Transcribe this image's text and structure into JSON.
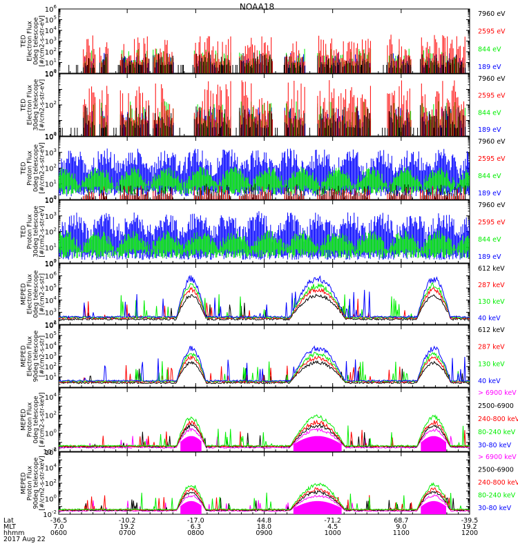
{
  "title": "NOAA18",
  "colors": {
    "black": "#000000",
    "red": "#ff0000",
    "green": "#00ee00",
    "blue": "#0000ff",
    "magenta": "#ff00ff",
    "axis": "#000000"
  },
  "chart_data": [
    {
      "type": "line",
      "ylabel": [
        "TED",
        "Electron Flux",
        "0deg telescope",
        "[#/cm2-s-str-eV]"
      ],
      "yscale": "log",
      "ylim": [
        1,
        1000000
      ],
      "ytick_exponents": [
        0,
        1,
        2,
        3,
        4,
        5,
        6
      ],
      "legend": [
        {
          "name": "7960 eV",
          "color": "#000000"
        },
        {
          "name": "2595 eV",
          "color": "#ff0000"
        },
        {
          "name": "844 eV",
          "color": "#00ee00"
        },
        {
          "name": "189 eV",
          "color": "#0000ff"
        }
      ],
      "style": "spiky"
    },
    {
      "type": "line",
      "ylabel": [
        "TED",
        "Electron Flux",
        "30deg telescope",
        "[#/cm2-s-str-eV]"
      ],
      "yscale": "log",
      "ylim": [
        1,
        10000
      ],
      "ytick_exponents": [
        0,
        2,
        4
      ],
      "legend": [
        {
          "name": "7960 eV",
          "color": "#000000"
        },
        {
          "name": "2595 eV",
          "color": "#ff0000"
        },
        {
          "name": "844 eV",
          "color": "#00ee00"
        },
        {
          "name": "189 eV",
          "color": "#0000ff"
        }
      ],
      "style": "spiky"
    },
    {
      "type": "line",
      "ylabel": [
        "TED",
        "Proton Flux",
        "0deg telescope",
        "[#/cm2-s-str-eV]"
      ],
      "yscale": "log",
      "ylim": [
        1,
        10000
      ],
      "ytick_exponents": [
        0,
        1,
        2,
        3,
        4
      ],
      "legend": [
        {
          "name": "7960 eV",
          "color": "#000000"
        },
        {
          "name": "2595 eV",
          "color": "#ff0000"
        },
        {
          "name": "844 eV",
          "color": "#00ee00"
        },
        {
          "name": "189 eV",
          "color": "#0000ff"
        }
      ],
      "style": "band"
    },
    {
      "type": "line",
      "ylabel": [
        "TED",
        "Proton Flux",
        "30deg telescope",
        "[#/cm2-s-str-eV]"
      ],
      "yscale": "log",
      "ylim": [
        1,
        10000
      ],
      "ytick_exponents": [
        0,
        1,
        2,
        3,
        4
      ],
      "legend": [
        {
          "name": "7960 eV",
          "color": "#000000"
        },
        {
          "name": "2595 eV",
          "color": "#ff0000"
        },
        {
          "name": "844 eV",
          "color": "#00ee00"
        },
        {
          "name": "189 eV",
          "color": "#0000ff"
        }
      ],
      "style": "band"
    },
    {
      "type": "line",
      "ylabel": [
        "MEPED",
        "Electron Flux",
        "0deg telescope",
        "[#/cm2-s-str]"
      ],
      "yscale": "log",
      "ylim": [
        100,
        10000000
      ],
      "ytick_exponents": [
        2,
        3,
        4,
        5,
        6,
        7
      ],
      "legend": [
        {
          "name": "612 keV",
          "color": "#000000"
        },
        {
          "name": "287 keV",
          "color": "#ff0000"
        },
        {
          "name": "130 keV",
          "color": "#00ee00"
        },
        {
          "name": "40 keV",
          "color": "#0000ff"
        }
      ],
      "style": "arc"
    },
    {
      "type": "line",
      "ylabel": [
        "MEPED",
        "Electron Flux",
        "90deg telescope",
        "[#/cm2-s-str]"
      ],
      "yscale": "log",
      "ylim": [
        1,
        1000000
      ],
      "ytick_exponents": [
        1,
        2,
        3,
        4,
        5,
        6
      ],
      "legend": [
        {
          "name": "612 keV",
          "color": "#000000"
        },
        {
          "name": "287 keV",
          "color": "#ff0000"
        },
        {
          "name": "130 keV",
          "color": "#00ee00"
        },
        {
          "name": "40 keV",
          "color": "#0000ff"
        }
      ],
      "style": "arc"
    },
    {
      "type": "line",
      "ylabel": [
        "MEPED",
        "Proton Flux",
        "0deg telescope",
        "[#/cm2-s-str-keV]"
      ],
      "yscale": "log",
      "ylim": [
        0.01,
        100000
      ],
      "ytick_exponents": [
        -2,
        0,
        2,
        4
      ],
      "legend": [
        {
          "name": "> 6900 keV",
          "color": "#ff00ff"
        },
        {
          "name": "2500-6900",
          "color": "#000000"
        },
        {
          "name": "240-800 keV",
          "color": "#ff0000"
        },
        {
          "name": "80-240 keV",
          "color": "#00ee00"
        },
        {
          "name": "30-80 keV",
          "color": "#0000ff"
        }
      ],
      "style": "proton"
    },
    {
      "type": "line",
      "ylabel": [
        "MEPED",
        "Proton Flux",
        "90deg telescope",
        "[#/cm2-s-str-keV]"
      ],
      "yscale": "log",
      "ylim": [
        0.01,
        1000000
      ],
      "ytick_exponents": [
        -2,
        0,
        2,
        4,
        6
      ],
      "legend": [
        {
          "name": "> 6900 keV",
          "color": "#ff00ff"
        },
        {
          "name": "2500-6900",
          "color": "#000000"
        },
        {
          "name": "240-800 keV",
          "color": "#ff0000"
        },
        {
          "name": "80-240 keV",
          "color": "#00ee00"
        },
        {
          "name": "30-80 keV",
          "color": "#0000ff"
        }
      ],
      "style": "proton"
    }
  ],
  "xaxis": {
    "row_labels": [
      "Lat",
      "MLT",
      "hhmm",
      "2017 Aug 22"
    ],
    "ticks": [
      {
        "lat": "-36.5",
        "mlt": "7.0",
        "hhmm": "0600"
      },
      {
        "lat": "-10.2",
        "mlt": "19.2",
        "hhmm": "0700"
      },
      {
        "lat": "-17.0",
        "mlt": "6.3",
        "hhmm": "0800"
      },
      {
        "lat": "44.8",
        "mlt": "18.0",
        "hhmm": "0900"
      },
      {
        "lat": "-71.2",
        "mlt": "4.5",
        "hhmm": "1000"
      },
      {
        "lat": "68.7",
        "mlt": "9.0",
        "hhmm": "1100"
      },
      {
        "lat": "-39.5",
        "mlt": "19.2",
        "hhmm": "1200"
      }
    ]
  }
}
